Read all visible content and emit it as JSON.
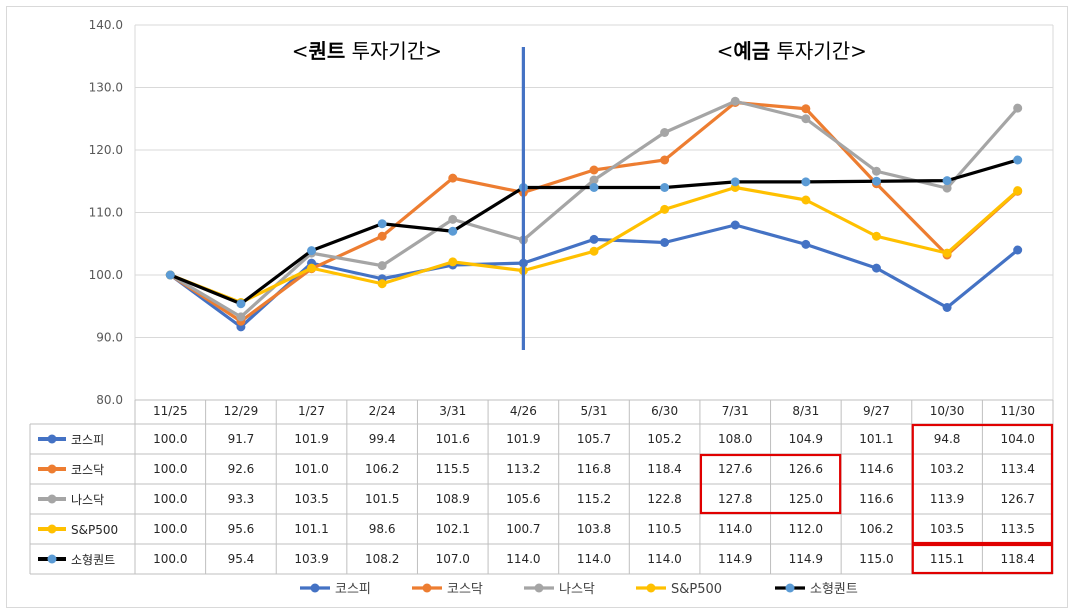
{
  "chart_data": {
    "type": "line",
    "categories": [
      "11/25",
      "12/29",
      "1/27",
      "2/24",
      "3/31",
      "4/26",
      "5/31",
      "6/30",
      "7/31",
      "8/31",
      "9/27",
      "10/30",
      "11/30"
    ],
    "ylim": [
      80,
      140
    ],
    "yticks": [
      "80.0",
      "90.0",
      "100.0",
      "110.0",
      "120.0",
      "130.0",
      "140.0"
    ],
    "series": [
      {
        "name": "코스피",
        "color": "#4472c4",
        "values": [
          100.0,
          91.7,
          101.9,
          99.4,
          101.6,
          101.9,
          105.7,
          105.2,
          108.0,
          104.9,
          101.1,
          94.8,
          104.0
        ],
        "labels": [
          "100.0",
          "91.7",
          "101.9",
          "99.4",
          "101.6",
          "101.9",
          "105.7",
          "105.2",
          "108.0",
          "104.9",
          "101.1",
          "94.8",
          "104.0"
        ]
      },
      {
        "name": "코스닥",
        "color": "#ed7d31",
        "values": [
          100.0,
          92.6,
          101.0,
          106.2,
          115.5,
          113.2,
          116.8,
          118.4,
          127.6,
          126.6,
          114.6,
          103.2,
          113.4
        ],
        "labels": [
          "100.0",
          "92.6",
          "101.0",
          "106.2",
          "115.5",
          "113.2",
          "116.8",
          "118.4",
          "127.6",
          "126.6",
          "114.6",
          "103.2",
          "113.4"
        ]
      },
      {
        "name": "나스닥",
        "color": "#a5a5a5",
        "values": [
          100.0,
          93.3,
          103.5,
          101.5,
          108.9,
          105.6,
          115.2,
          122.8,
          127.8,
          125.0,
          116.6,
          113.9,
          126.7
        ],
        "labels": [
          "100.0",
          "93.3",
          "103.5",
          "101.5",
          "108.9",
          "105.6",
          "115.2",
          "122.8",
          "127.8",
          "125.0",
          "116.6",
          "113.9",
          "126.7"
        ]
      },
      {
        "name": "S&P500",
        "color": "#ffc000",
        "values": [
          100.0,
          95.6,
          101.1,
          98.6,
          102.1,
          100.7,
          103.8,
          110.5,
          114.0,
          112.0,
          106.2,
          103.5,
          113.5
        ],
        "labels": [
          "100.0",
          "95.6",
          "101.1",
          "98.6",
          "102.1",
          "100.7",
          "103.8",
          "110.5",
          "114.0",
          "112.0",
          "106.2",
          "103.5",
          "113.5"
        ]
      },
      {
        "name": "소형퀀트",
        "color": "#000000",
        "marker_color": "#5b9bd5",
        "values": [
          100.0,
          95.4,
          103.9,
          108.2,
          107.0,
          114.0,
          114.0,
          114.0,
          114.9,
          114.9,
          115.0,
          115.1,
          118.4
        ],
        "labels": [
          "100.0",
          "95.4",
          "103.9",
          "108.2",
          "107.0",
          "114.0",
          "114.0",
          "114.0",
          "114.9",
          "114.9",
          "115.0",
          "115.1",
          "118.4"
        ]
      }
    ],
    "annotations": {
      "left": {
        "pre": "<",
        "bold": "퀀트",
        "post": " 투자기간>"
      },
      "right": {
        "pre": "<",
        "bold": "예금",
        "post": " 투자기간>"
      }
    },
    "divider_after_category": "4/26",
    "divider_color": "#4472c4",
    "highlight_color": "#e00000"
  }
}
